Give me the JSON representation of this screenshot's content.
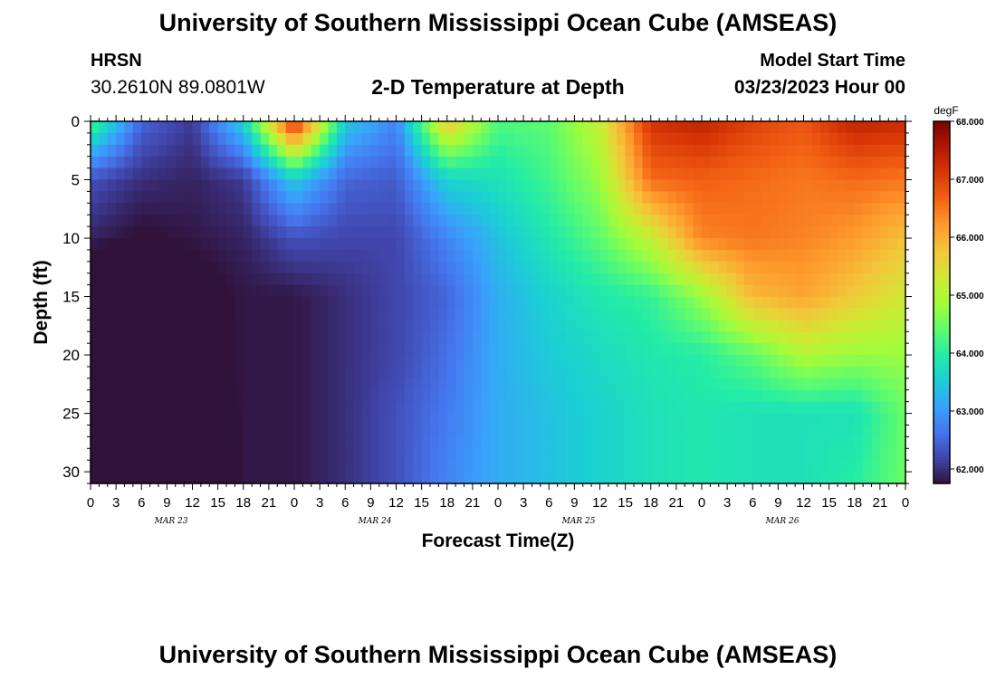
{
  "header": {
    "title": "University of Southern Mississippi Ocean Cube (AMSEAS)",
    "station": "HRSN",
    "coords": "30.2610N  89.0801W",
    "chart_title": "2-D Temperature at Depth",
    "model_start_label": "Model Start Time",
    "model_start_value": "03/23/2023 Hour 00"
  },
  "footer": {
    "title": "University of Southern Mississippi Ocean Cube (AMSEAS)"
  },
  "chart_data": {
    "type": "heatmap",
    "title": "2-D Temperature at Depth",
    "xlabel": "Forecast Time(Z)",
    "ylabel": "Depth (ft)",
    "colorbar_label": "degF",
    "x_hours": [
      0,
      6,
      12,
      18,
      24,
      30,
      36,
      42,
      48,
      54,
      60,
      66,
      72,
      78,
      84,
      90,
      96
    ],
    "depth_ft": [
      0,
      5,
      10,
      15,
      20,
      25,
      31
    ],
    "values_degF": [
      [
        64.3,
        62.5,
        62.1,
        63.6,
        67.3,
        63.5,
        62.8,
        65.8,
        64.3,
        64.4,
        65.2,
        67.2,
        67.4,
        67.0,
        66.8,
        67.4,
        67.3
      ],
      [
        62.3,
        62.0,
        61.9,
        62.1,
        63.5,
        62.5,
        62.4,
        63.6,
        63.8,
        64.2,
        64.8,
        66.6,
        66.7,
        66.6,
        66.5,
        66.6,
        66.5
      ],
      [
        61.9,
        61.7,
        61.8,
        61.9,
        62.3,
        62.2,
        62.2,
        62.8,
        63.4,
        63.9,
        64.4,
        65.2,
        66.4,
        66.5,
        66.4,
        66.2,
        65.8
      ],
      [
        61.2,
        61.0,
        61.6,
        61.8,
        61.8,
        62.0,
        62.2,
        62.5,
        63.2,
        63.6,
        63.9,
        64.1,
        64.8,
        65.9,
        66.1,
        65.7,
        65.3
      ],
      [
        61.2,
        61.3,
        61.5,
        61.8,
        61.8,
        62.0,
        62.2,
        62.6,
        63.2,
        63.5,
        63.7,
        63.9,
        64.0,
        64.4,
        65.0,
        64.8,
        64.8
      ],
      [
        61.1,
        61.2,
        61.3,
        61.8,
        61.8,
        62.0,
        62.3,
        62.7,
        63.2,
        63.4,
        63.6,
        63.8,
        63.9,
        63.8,
        63.8,
        63.8,
        64.5
      ],
      [
        61.1,
        61.1,
        61.2,
        61.8,
        61.8,
        62.0,
        62.3,
        62.8,
        63.2,
        63.4,
        63.6,
        63.8,
        63.9,
        63.8,
        63.8,
        64.0,
        64.5
      ]
    ],
    "x_tick_labels": [
      "0",
      "3",
      "6",
      "9",
      "12",
      "15",
      "18",
      "21",
      "0",
      "3",
      "6",
      "9",
      "12",
      "15",
      "18",
      "21",
      "0",
      "3",
      "6",
      "9",
      "12",
      "15",
      "18",
      "21",
      "0",
      "3",
      "6",
      "9",
      "12",
      "15",
      "18",
      "21",
      "0"
    ],
    "day_labels": [
      "MAR 23",
      "MAR 24",
      "MAR 25",
      "MAR 26"
    ],
    "y_ticks": [
      0,
      5,
      10,
      15,
      20,
      25,
      30
    ],
    "ylim": [
      31,
      0
    ],
    "xlim": [
      0,
      96
    ],
    "colorbar_ticks": [
      "62.000",
      "63.000",
      "64.000",
      "65.000",
      "66.000",
      "67.000",
      "68.000"
    ],
    "color_range": [
      61.75,
      68.0
    ],
    "colormap": [
      "#30123b",
      "#4145ab",
      "#4675ed",
      "#39a2fc",
      "#1bcfd4",
      "#24eca6",
      "#61fc6c",
      "#a4fc3b",
      "#d1e834",
      "#f3c63a",
      "#fe9b2d",
      "#f36315",
      "#d93806",
      "#b11901",
      "#7a0402"
    ]
  }
}
